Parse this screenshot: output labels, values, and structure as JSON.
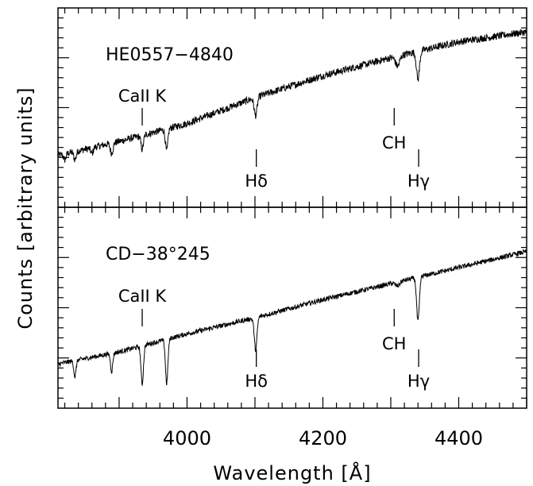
{
  "chart_data": [
    {
      "type": "line",
      "label": "HE0557−4840",
      "ylabel": "Counts  [arbitrary  units]",
      "xlim": [
        3810,
        4500
      ],
      "ylim": [
        0,
        1
      ],
      "series": [
        {
          "name": "HE0557−4840",
          "continuum": [
            [
              3810,
              0.26
            ],
            [
              3900,
              0.33
            ],
            [
              4000,
              0.42
            ],
            [
              4100,
              0.55
            ],
            [
              4200,
              0.66
            ],
            [
              4300,
              0.75
            ],
            [
              4400,
              0.83
            ],
            [
              4500,
              0.88
            ]
          ],
          "absorption_lines": [
            {
              "x": 3820,
              "depth": 0.03,
              "width": 1.8
            },
            {
              "x": 3835,
              "depth": 0.04,
              "width": 1.8
            },
            {
              "x": 3860,
              "depth": 0.03,
              "width": 1.8
            },
            {
              "x": 3889,
              "depth": 0.05,
              "width": 2.0
            },
            {
              "x": 3934,
              "depth": 0.07,
              "width": 1.8
            },
            {
              "x": 3970,
              "depth": 0.11,
              "width": 1.8
            },
            {
              "x": 4101,
              "depth": 0.09,
              "width": 2.2
            },
            {
              "x": 4310,
              "depth": 0.05,
              "width": 3.0
            },
            {
              "x": 4340,
              "depth": 0.14,
              "width": 2.2
            }
          ]
        }
      ],
      "annotations": [
        {
          "text": "CaII K",
          "x": 3934,
          "position": "above"
        },
        {
          "text": "Hδ",
          "x": 4102,
          "position": "below"
        },
        {
          "text": "CH",
          "x": 4305,
          "position": "above-low"
        },
        {
          "text": "Hγ",
          "x": 4341,
          "position": "below"
        }
      ]
    },
    {
      "type": "line",
      "label": "CD−38°245",
      "xlabel": "Wavelength  [Å]",
      "xlim": [
        3810,
        4500
      ],
      "xticks": [
        4000,
        4200,
        4400
      ],
      "ylim": [
        0,
        1
      ],
      "series": [
        {
          "name": "CD−38°245",
          "continuum": [
            [
              3810,
              0.22
            ],
            [
              3900,
              0.28
            ],
            [
              4000,
              0.37
            ],
            [
              4100,
              0.45
            ],
            [
              4200,
              0.54
            ],
            [
              4300,
              0.62
            ],
            [
              4400,
              0.7
            ],
            [
              4500,
              0.78
            ]
          ],
          "absorption_lines": [
            {
              "x": 3835,
              "depth": 0.08,
              "width": 1.6
            },
            {
              "x": 3889,
              "depth": 0.09,
              "width": 1.6
            },
            {
              "x": 3934,
              "depth": 0.19,
              "width": 1.8
            },
            {
              "x": 3970,
              "depth": 0.22,
              "width": 1.8
            },
            {
              "x": 4101,
              "depth": 0.16,
              "width": 2.0
            },
            {
              "x": 4310,
              "depth": 0.02,
              "width": 3.0
            },
            {
              "x": 4340,
              "depth": 0.22,
              "width": 2.0
            }
          ]
        }
      ],
      "annotations": [
        {
          "text": "CaII K",
          "x": 3934,
          "position": "above"
        },
        {
          "text": "Hδ",
          "x": 4102,
          "position": "below"
        },
        {
          "text": "CH",
          "x": 4305,
          "position": "above-low"
        },
        {
          "text": "Hγ",
          "x": 4341,
          "position": "below"
        }
      ]
    }
  ]
}
